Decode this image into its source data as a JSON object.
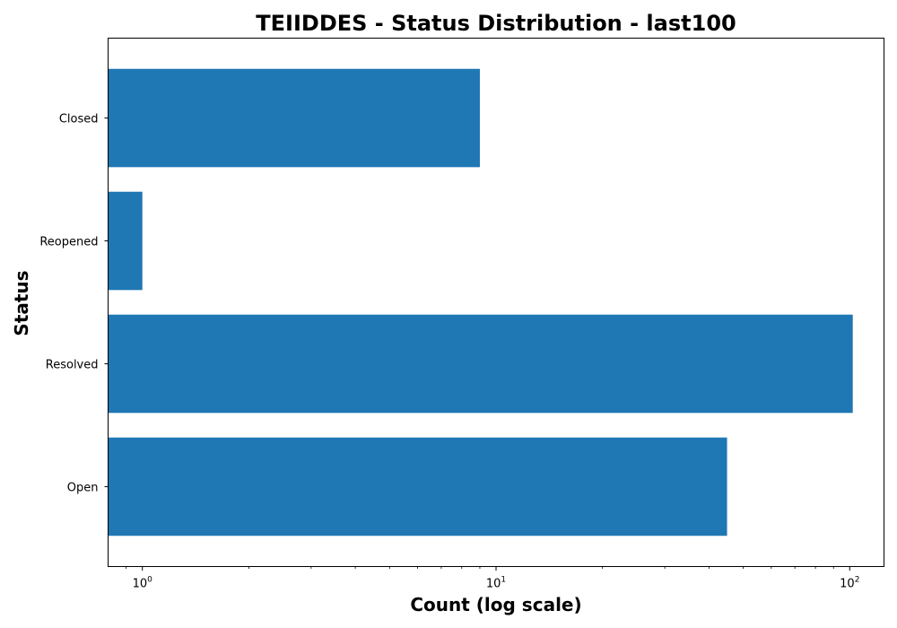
{
  "chart_data": {
    "type": "bar",
    "orientation": "horizontal",
    "title": "TEIIDDES - Status Distribution - last100",
    "xlabel": "Count (log scale)",
    "ylabel": "Status",
    "xscale": "log",
    "xlim": [
      0.8,
      125
    ],
    "categories": [
      "Closed",
      "Reopened",
      "Resolved",
      "Open"
    ],
    "values": [
      9,
      1,
      102,
      45
    ],
    "bar_color": "#1f77b4",
    "x_ticks": [
      {
        "value": 1,
        "base": "10",
        "exp": "0"
      },
      {
        "value": 10,
        "base": "10",
        "exp": "1"
      },
      {
        "value": 100,
        "base": "10",
        "exp": "2"
      }
    ],
    "grid": false
  }
}
